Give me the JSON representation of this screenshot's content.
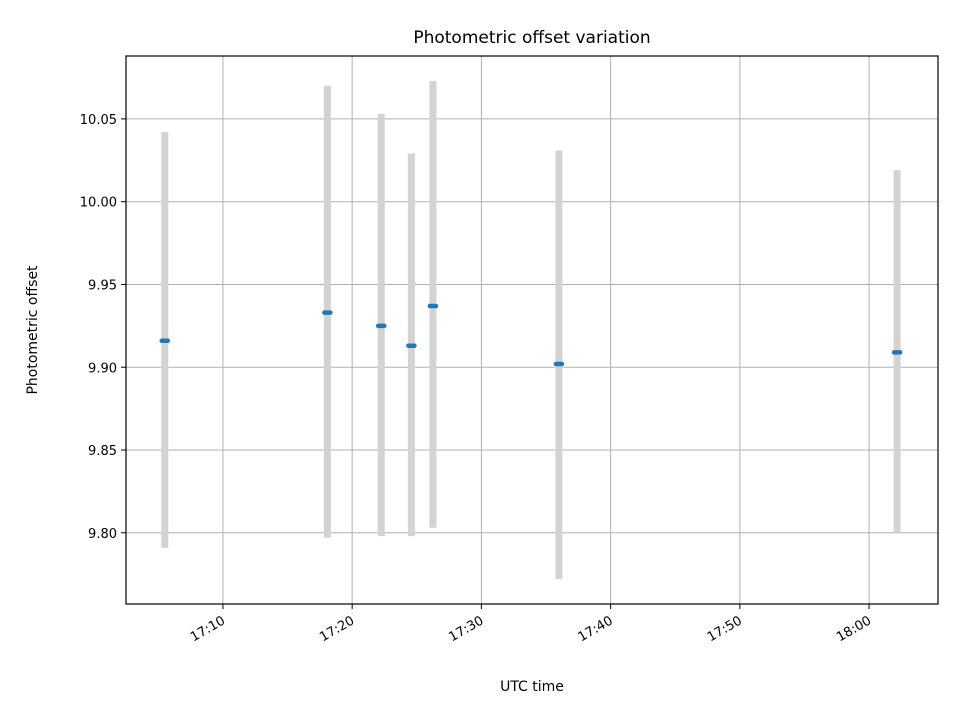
{
  "chart_data": {
    "type": "scatter",
    "title": "Photometric offset variation",
    "xlabel": "UTC time",
    "ylabel": "Photometric offset",
    "x_ticks": [
      "17:10",
      "17:20",
      "17:30",
      "17:40",
      "17:50",
      "18:00"
    ],
    "y_ticks": [
      "9.80",
      "9.85",
      "9.90",
      "9.95",
      "10.00",
      "10.05"
    ],
    "xlim": [
      "17:02:30",
      "18:05:20"
    ],
    "ylim": [
      9.757,
      10.088
    ],
    "grid": true,
    "points": [
      {
        "x": "17:05:30",
        "y": 9.916,
        "err_low": 9.791,
        "err_high": 10.042
      },
      {
        "x": "17:18:05",
        "y": 9.933,
        "err_low": 9.797,
        "err_high": 10.07
      },
      {
        "x": "17:22:15",
        "y": 9.925,
        "err_low": 9.798,
        "err_high": 10.053
      },
      {
        "x": "17:24:35",
        "y": 9.913,
        "err_low": 9.798,
        "err_high": 10.029
      },
      {
        "x": "17:26:15",
        "y": 9.937,
        "err_low": 9.803,
        "err_high": 10.073
      },
      {
        "x": "17:36:00",
        "y": 9.902,
        "err_low": 9.772,
        "err_high": 10.031
      },
      {
        "x": "18:02:10",
        "y": 9.909,
        "err_low": 9.8,
        "err_high": 10.019
      }
    ],
    "colors": {
      "point": "#1f77b4",
      "error_bar": "#d3d3d3",
      "grid": "#b0b0b0"
    }
  }
}
